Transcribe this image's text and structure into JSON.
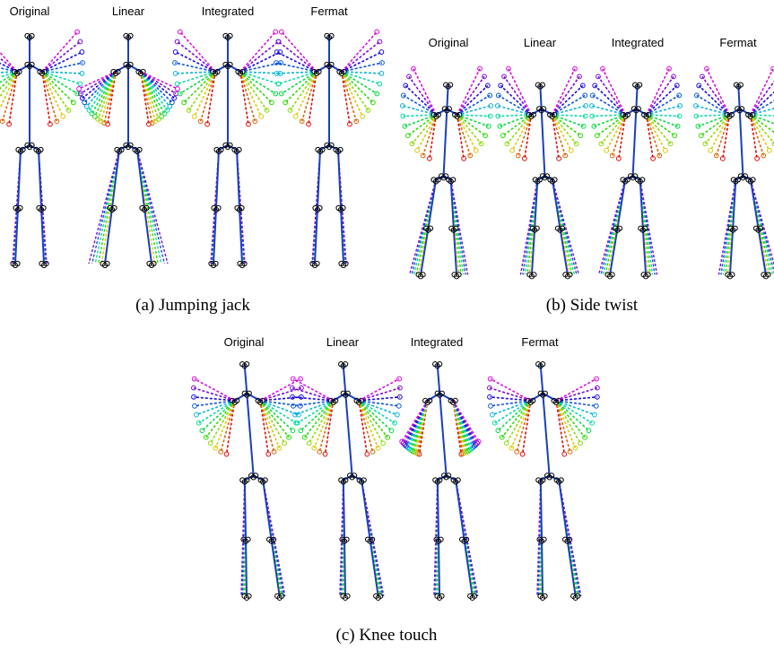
{
  "panels": [
    {
      "titles": [
        "Original",
        "Linear",
        "Integrated",
        "Fermat"
      ],
      "caption": "(a) Jumping jack"
    },
    {
      "titles": [
        "Original",
        "Linear",
        "Integrated",
        "Fermat"
      ],
      "caption": "(b) Side twist"
    },
    {
      "titles": [
        "Original",
        "Linear",
        "Integrated",
        "Fermat"
      ],
      "caption": "(c) Knee touch"
    }
  ]
}
